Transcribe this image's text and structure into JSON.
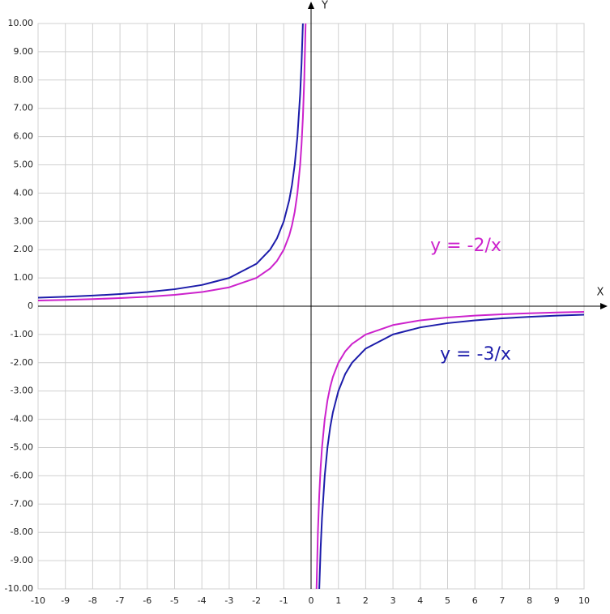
{
  "chart_data": {
    "type": "line",
    "x_label": "X",
    "y_label": "Y",
    "x": [
      -10,
      -9,
      -8,
      -7,
      -6,
      -5,
      -4,
      -3,
      -2,
      -1.5,
      -1.25,
      -1,
      -0.8,
      -0.7,
      -0.6,
      -0.5,
      -0.4,
      -0.35,
      -0.3,
      -0.25,
      -0.2,
      0,
      0.2,
      0.25,
      0.3,
      0.35,
      0.4,
      0.5,
      0.6,
      0.7,
      0.8,
      1,
      1.25,
      1.5,
      2,
      3,
      4,
      5,
      6,
      7,
      8,
      9,
      10
    ],
    "series": [
      {
        "name": "y = -2/x",
        "color": "#cc22cc",
        "values": [
          0.2,
          0.2222,
          0.25,
          0.2857,
          0.3333,
          0.4,
          0.5,
          0.6667,
          1,
          1.3333,
          1.6,
          2,
          2.5,
          2.8571,
          3.3333,
          4,
          5,
          5.7143,
          6.6667,
          8,
          10,
          null,
          -10,
          -8,
          -6.6667,
          -5.7143,
          -5,
          -4,
          -3.3333,
          -2.8571,
          -2.5,
          -2,
          -1.6,
          -1.3333,
          -1,
          -0.6667,
          -0.5,
          -0.4,
          -0.3333,
          -0.2857,
          -0.25,
          -0.2222,
          -0.2
        ]
      },
      {
        "name": "y = -3/x",
        "color": "#1c1caa",
        "values": [
          0.3,
          0.3333,
          0.375,
          0.4286,
          0.5,
          0.6,
          0.75,
          1,
          1.5,
          2,
          2.4,
          3,
          3.75,
          4.2857,
          5,
          6,
          7.5,
          8.5714,
          10,
          null,
          null,
          null,
          null,
          null,
          -10,
          -8.5714,
          -7.5,
          -6,
          -5,
          -4.2857,
          -3.75,
          -3,
          -2.4,
          -2,
          -1.5,
          -1,
          -0.75,
          -0.6,
          -0.5,
          -0.4286,
          -0.375,
          -0.3333,
          -0.3
        ]
      }
    ],
    "xlim": [
      -10,
      10
    ],
    "ylim": [
      -10,
      10
    ],
    "xticks": [
      -10,
      -9,
      -8,
      -7,
      -6,
      -5,
      -4,
      -3,
      -2,
      -1,
      0,
      1,
      2,
      3,
      4,
      5,
      6,
      7,
      8,
      9,
      10
    ],
    "yticks": [
      {
        "value": -10,
        "label": "-10.00"
      },
      {
        "value": -9,
        "label": "-9.00"
      },
      {
        "value": -8,
        "label": "-8.00"
      },
      {
        "value": -7,
        "label": "-7.00"
      },
      {
        "value": -6,
        "label": "-6.00"
      },
      {
        "value": -5,
        "label": "-5.00"
      },
      {
        "value": -4,
        "label": "-4.00"
      },
      {
        "value": -3,
        "label": "-3.00"
      },
      {
        "value": -2,
        "label": "-2.00"
      },
      {
        "value": -1,
        "label": "-1.00"
      },
      0,
      {
        "value": 1,
        "label": "1.00"
      },
      {
        "value": 2,
        "label": "2.00"
      },
      {
        "value": 3,
        "label": "3.00"
      },
      {
        "value": 4,
        "label": "4.00"
      },
      {
        "value": 5,
        "label": "5.00"
      },
      {
        "value": 6,
        "label": "6.00"
      },
      {
        "value": 7,
        "label": "7.00"
      },
      {
        "value": 8,
        "label": "8.00"
      },
      {
        "value": 9,
        "label": "9.00"
      },
      {
        "value": 10,
        "label": "10.00"
      }
    ],
    "grid": true
  }
}
